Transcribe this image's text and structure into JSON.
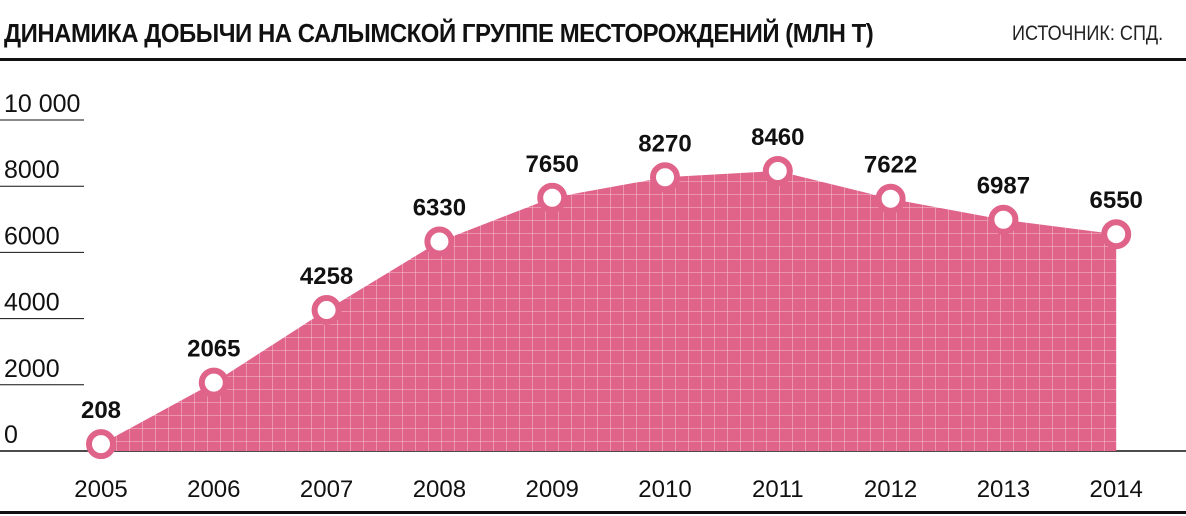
{
  "chart_data": {
    "type": "area",
    "title": "ДИНАМИКА ДОБЫЧИ НА САЛЫМСКОЙ ГРУППЕ МЕСТОРОЖДЕНИЙ (МЛН Т)",
    "source": "ИСТОЧНИК: СПД.",
    "categories": [
      "2005",
      "2006",
      "2007",
      "2008",
      "2009",
      "2010",
      "2011",
      "2012",
      "2013",
      "2014"
    ],
    "values": [
      208,
      2065,
      4258,
      6330,
      7650,
      8270,
      8460,
      7622,
      6987,
      6550
    ],
    "value_labels": [
      "208",
      "2065",
      "4258",
      "6330",
      "7650",
      "8270",
      "8460",
      "7622",
      "6987",
      "6550"
    ],
    "y_ticks": [
      0,
      2000,
      4000,
      6000,
      8000,
      10000
    ],
    "y_tick_labels": [
      "0",
      "2000",
      "4000",
      "6000",
      "8000",
      "10 000"
    ],
    "ylim": [
      0,
      10000
    ],
    "grid": true,
    "colors": {
      "fill": "#e0648a",
      "grid": "#ffffff",
      "marker_ring": "#e0648a",
      "marker_center": "#ffffff",
      "axis": "#111111"
    }
  }
}
